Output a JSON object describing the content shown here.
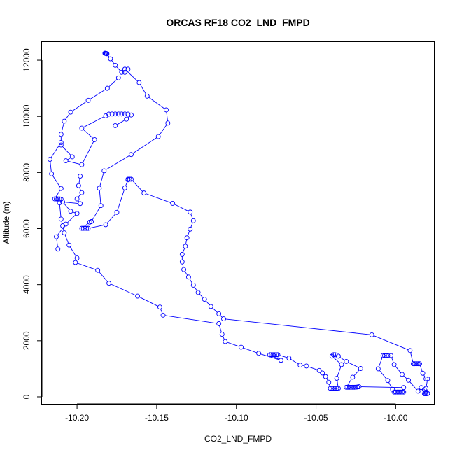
{
  "chart_data": {
    "type": "line",
    "title": "ORCAS RF18 CO2_LND_FMPD",
    "xlabel": "CO2_LND_FMPD",
    "ylabel": "Altitude (m)",
    "xlim": [
      -10.222,
      -9.976
    ],
    "ylim": [
      -250,
      12650
    ],
    "xticks": [
      -10.2,
      -10.15,
      -10.1,
      -10.05,
      -10.0
    ],
    "xtick_labels": [
      "-10.20",
      "-10.15",
      "-10.10",
      "-10.05",
      "-10.00"
    ],
    "yticks": [
      0,
      2000,
      4000,
      6000,
      8000,
      10000,
      12000
    ],
    "ytick_labels": [
      "0",
      "2000",
      "4000",
      "6000",
      "8000",
      "10000",
      "12000"
    ],
    "grid": false,
    "marker": "open-circle",
    "series": [
      {
        "color": "#0000ff",
        "points": [
          [
            -10.1825,
            12250
          ],
          [
            -10.1822,
            12245
          ],
          [
            -10.1818,
            12240
          ],
          [
            -10.1815,
            12235
          ],
          [
            -10.1812,
            12230
          ],
          [
            -10.179,
            12050
          ],
          [
            -10.176,
            11820
          ],
          [
            -10.172,
            11570
          ],
          [
            -10.17,
            11680
          ],
          [
            -10.161,
            11200
          ],
          [
            -10.156,
            10720
          ],
          [
            -10.144,
            10230
          ],
          [
            -10.143,
            9760
          ],
          [
            -10.149,
            9280
          ],
          [
            -10.166,
            8640
          ],
          [
            -10.183,
            8060
          ],
          [
            -10.186,
            7440
          ],
          [
            -10.185,
            6820
          ],
          [
            -10.191,
            6250
          ],
          [
            -10.192,
            6230
          ],
          [
            -10.197,
            6010
          ],
          [
            -10.196,
            6010
          ],
          [
            -10.195,
            6010
          ],
          [
            -10.194,
            6010
          ],
          [
            -10.193,
            6010
          ],
          [
            -10.182,
            6140
          ],
          [
            -10.175,
            6580
          ],
          [
            -10.17,
            7450
          ],
          [
            -10.168,
            7740
          ],
          [
            -10.168,
            7760
          ],
          [
            -10.167,
            7760
          ],
          [
            -10.166,
            7760
          ],
          [
            -10.158,
            7270
          ],
          [
            -10.14,
            6900
          ],
          [
            -10.129,
            6590
          ],
          [
            -10.127,
            6280
          ],
          [
            -10.129,
            5980
          ],
          [
            -10.131,
            5670
          ],
          [
            -10.132,
            5370
          ],
          [
            -10.134,
            5080
          ],
          [
            -10.134,
            4810
          ],
          [
            -10.133,
            4540
          ],
          [
            -10.13,
            4270
          ],
          [
            -10.127,
            3980
          ],
          [
            -10.124,
            3720
          ],
          [
            -10.12,
            3480
          ],
          [
            -10.116,
            3220
          ],
          [
            -10.111,
            2960
          ],
          [
            -10.108,
            2780
          ],
          [
            -10.015,
            2210
          ],
          [
            -9.991,
            1650
          ],
          [
            -9.989,
            1180
          ],
          [
            -9.988,
            1180
          ],
          [
            -9.987,
            1180
          ],
          [
            -9.986,
            1180
          ],
          [
            -9.985,
            1180
          ],
          [
            -9.983,
            840
          ],
          [
            -9.981,
            640
          ],
          [
            -9.98,
            640
          ],
          [
            -9.981,
            300
          ],
          [
            -9.982,
            250
          ],
          [
            -9.981,
            160
          ],
          [
            -9.98,
            120
          ],
          [
            -9.98,
            115
          ],
          [
            -9.981,
            112
          ],
          [
            -9.982,
            110
          ],
          [
            -9.981,
            108
          ],
          [
            -9.984,
            330
          ],
          [
            -9.986,
            200
          ],
          [
            -9.992,
            590
          ],
          [
            -9.996,
            800
          ],
          [
            -10.001,
            1150
          ],
          [
            -10.003,
            1470
          ],
          [
            -10.005,
            1470
          ],
          [
            -10.006,
            1470
          ],
          [
            -10.007,
            1470
          ],
          [
            -10.008,
            1470
          ],
          [
            -10.011,
            1000
          ],
          [
            -10.005,
            580
          ],
          [
            -10.002,
            270
          ],
          [
            -10.001,
            170
          ],
          [
            -10.0,
            170
          ],
          [
            -9.999,
            170
          ],
          [
            -9.998,
            170
          ],
          [
            -9.997,
            170
          ],
          [
            -9.996,
            170
          ],
          [
            -9.995,
            170
          ],
          [
            -9.995,
            330
          ],
          [
            -10.023,
            360
          ],
          [
            -10.024,
            350
          ],
          [
            -10.025,
            345
          ],
          [
            -10.026,
            340
          ],
          [
            -10.027,
            340
          ],
          [
            -10.028,
            340
          ],
          [
            -10.029,
            340
          ],
          [
            -10.03,
            340
          ],
          [
            -10.031,
            340
          ],
          [
            -10.027,
            700
          ],
          [
            -10.022,
            1010
          ],
          [
            -10.031,
            1260
          ],
          [
            -10.036,
            1450
          ],
          [
            -10.038,
            1500
          ],
          [
            -10.039,
            1500
          ],
          [
            -10.04,
            1450
          ],
          [
            -10.034,
            1150
          ],
          [
            -10.037,
            660
          ],
          [
            -10.036,
            300
          ],
          [
            -10.037,
            300
          ],
          [
            -10.038,
            300
          ],
          [
            -10.039,
            300
          ],
          [
            -10.04,
            300
          ],
          [
            -10.041,
            300
          ],
          [
            -10.042,
            520
          ],
          [
            -10.044,
            720
          ],
          [
            -10.046,
            850
          ],
          [
            -10.048,
            940
          ],
          [
            -10.056,
            1100
          ],
          [
            -10.06,
            1130
          ],
          [
            -10.067,
            1380
          ],
          [
            -10.074,
            1500
          ],
          [
            -10.075,
            1500
          ],
          [
            -10.076,
            1500
          ],
          [
            -10.077,
            1500
          ],
          [
            -10.078,
            1500
          ],
          [
            -10.079,
            1500
          ],
          [
            -10.072,
            1300
          ],
          [
            -10.086,
            1550
          ],
          [
            -10.097,
            1770
          ],
          [
            -10.107,
            1970
          ],
          [
            -10.109,
            2230
          ],
          [
            -10.111,
            2610
          ],
          [
            -10.146,
            2910
          ],
          [
            -10.148,
            3200
          ],
          [
            -10.162,
            3590
          ],
          [
            -10.18,
            4050
          ],
          [
            -10.187,
            4510
          ],
          [
            -10.201,
            4790
          ],
          [
            -10.2,
            4950
          ],
          [
            -10.205,
            5410
          ],
          [
            -10.208,
            5850
          ],
          [
            -10.209,
            6100
          ],
          [
            -10.21,
            6340
          ],
          [
            -10.211,
            6920
          ],
          [
            -10.21,
            7050
          ],
          [
            -10.211,
            7060
          ],
          [
            -10.212,
            7060
          ],
          [
            -10.213,
            7060
          ],
          [
            -10.214,
            7060
          ],
          [
            -10.21,
            7430
          ],
          [
            -10.216,
            7950
          ],
          [
            -10.217,
            8470
          ],
          [
            -10.21,
            9070
          ],
          [
            -10.21,
            9360
          ],
          [
            -10.208,
            9830
          ],
          [
            -10.204,
            10150
          ],
          [
            -10.193,
            10570
          ],
          [
            -10.181,
            11000
          ],
          [
            -10.174,
            11370
          ]
        ]
      },
      {
        "color": "#0000ff",
        "points": [
          [
            -10.17,
            11570
          ],
          [
            -10.168,
            11680
          ]
        ]
      },
      {
        "color": "#0000ff",
        "points": [
          [
            -10.21,
            8980
          ],
          [
            -10.203,
            8560
          ],
          [
            -10.207,
            8420
          ],
          [
            -10.197,
            8280
          ],
          [
            -10.189,
            9170
          ],
          [
            -10.197,
            9580
          ],
          [
            -10.182,
            10020
          ],
          [
            -10.18,
            10080
          ],
          [
            -10.178,
            10085
          ],
          [
            -10.176,
            10085
          ],
          [
            -10.174,
            10085
          ],
          [
            -10.172,
            10085
          ],
          [
            -10.17,
            10085
          ],
          [
            -10.168,
            10080
          ],
          [
            -10.166,
            10050
          ],
          [
            -10.169,
            9900
          ],
          [
            -10.176,
            9670
          ]
        ]
      },
      {
        "color": "#0000ff",
        "points": [
          [
            -10.198,
            7870
          ],
          [
            -10.199,
            7530
          ],
          [
            -10.197,
            7280
          ],
          [
            -10.2,
            7060
          ],
          [
            -10.198,
            6890
          ],
          [
            -10.209,
            6950
          ],
          [
            -10.204,
            6620
          ],
          [
            -10.2,
            6540
          ],
          [
            -10.207,
            6160
          ],
          [
            -10.213,
            5710
          ],
          [
            -10.212,
            5270
          ]
        ]
      }
    ]
  }
}
